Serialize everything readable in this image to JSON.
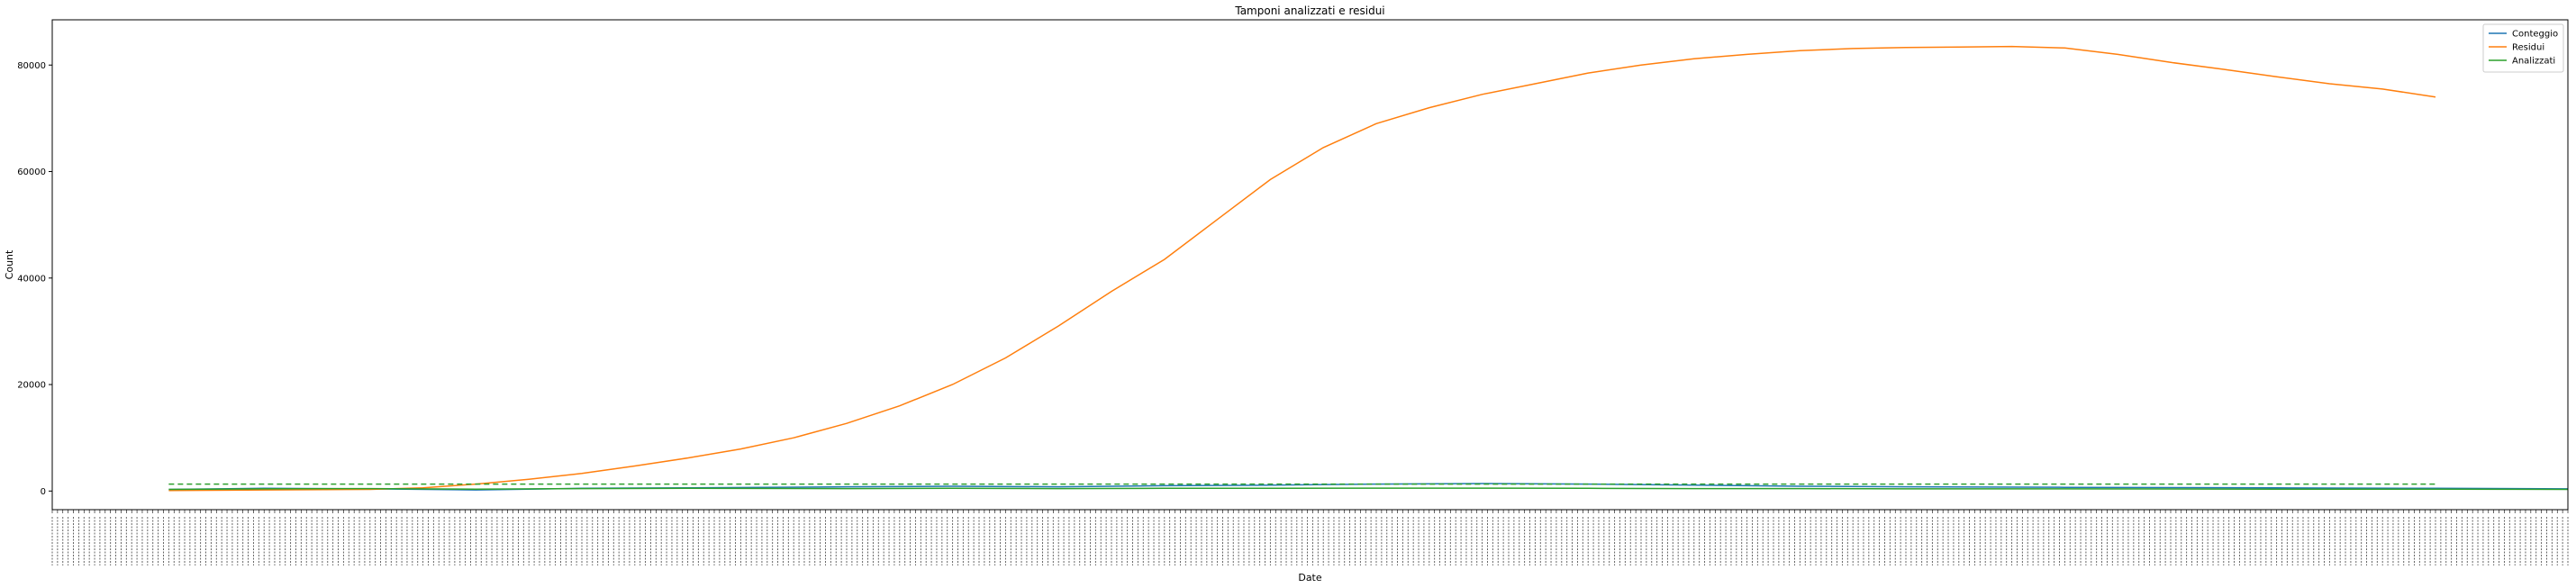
{
  "chart_data": {
    "type": "line",
    "title": "Tamponi analizzati e residui",
    "xlabel": "Date",
    "ylabel": "Count",
    "ylim": [
      -3500,
      88500
    ],
    "yticks": [
      0,
      20000,
      40000,
      60000,
      80000
    ],
    "x_index_range": [
      0,
      475
    ],
    "legend_position": "upper right",
    "grid": false,
    "series": [
      {
        "name": "Conteggio",
        "color": "#1f77b4",
        "style": "solid",
        "points": [
          [
            22,
            300
          ],
          [
            40,
            500
          ],
          [
            60,
            400
          ],
          [
            80,
            200
          ],
          [
            100,
            500
          ],
          [
            120,
            600
          ],
          [
            150,
            800
          ],
          [
            170,
            900
          ],
          [
            190,
            800
          ],
          [
            210,
            1000
          ],
          [
            230,
            1100
          ],
          [
            250,
            1300
          ],
          [
            270,
            1400
          ],
          [
            290,
            1300
          ],
          [
            310,
            1100
          ],
          [
            330,
            900
          ],
          [
            350,
            800
          ],
          [
            380,
            700
          ],
          [
            420,
            600
          ],
          [
            450,
            500
          ],
          [
            475,
            400
          ]
        ]
      },
      {
        "name": "Residui",
        "color": "#ff7f0e",
        "style": "solid",
        "points": [
          [
            22,
            100
          ],
          [
            40,
            200
          ],
          [
            60,
            300
          ],
          [
            70,
            600
          ],
          [
            80,
            1300
          ],
          [
            90,
            2200
          ],
          [
            100,
            3300
          ],
          [
            110,
            4700
          ],
          [
            120,
            6200
          ],
          [
            130,
            7900
          ],
          [
            140,
            10000
          ],
          [
            150,
            12700
          ],
          [
            160,
            16000
          ],
          [
            170,
            20000
          ],
          [
            180,
            25000
          ],
          [
            190,
            31000
          ],
          [
            200,
            37500
          ],
          [
            210,
            43500
          ],
          [
            220,
            51000
          ],
          [
            230,
            58500
          ],
          [
            240,
            64500
          ],
          [
            250,
            69000
          ],
          [
            260,
            72000
          ],
          [
            270,
            74500
          ],
          [
            280,
            76500
          ],
          [
            290,
            78500
          ],
          [
            300,
            80000
          ],
          [
            310,
            81200
          ],
          [
            320,
            82000
          ],
          [
            330,
            82700
          ],
          [
            340,
            83100
          ],
          [
            350,
            83300
          ],
          [
            360,
            83400
          ],
          [
            370,
            83500
          ],
          [
            380,
            83200
          ],
          [
            390,
            82000
          ],
          [
            400,
            80500
          ],
          [
            410,
            79200
          ],
          [
            420,
            77800
          ],
          [
            430,
            76500
          ],
          [
            440,
            75500
          ],
          [
            450,
            74000
          ]
        ]
      },
      {
        "name": "Analizzati",
        "color": "#2ca02c",
        "style": "solid",
        "points": [
          [
            22,
            300
          ],
          [
            40,
            400
          ],
          [
            60,
            450
          ],
          [
            80,
            350
          ],
          [
            100,
            450
          ],
          [
            120,
            500
          ],
          [
            150,
            450
          ],
          [
            170,
            500
          ],
          [
            190,
            450
          ],
          [
            210,
            500
          ],
          [
            230,
            500
          ],
          [
            250,
            550
          ],
          [
            270,
            550
          ],
          [
            290,
            500
          ],
          [
            310,
            450
          ],
          [
            330,
            450
          ],
          [
            350,
            400
          ],
          [
            380,
            400
          ],
          [
            420,
            350
          ],
          [
            450,
            350
          ],
          [
            475,
            300
          ]
        ]
      }
    ],
    "reference_lines": [
      {
        "color": "#2ca02c",
        "style": "dashed",
        "y": 1300,
        "x_range": [
          22,
          450
        ]
      }
    ],
    "x_tick_count": 476
  }
}
